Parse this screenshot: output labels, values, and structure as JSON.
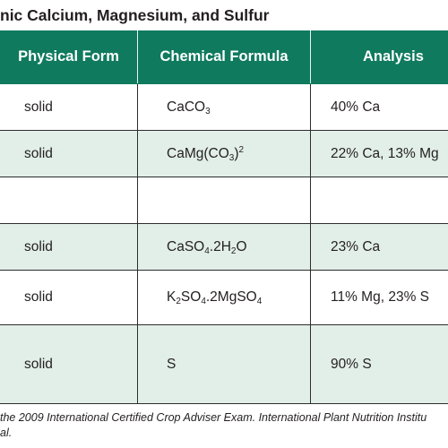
{
  "title": "nic Calcium, Magnesium, and Sulfur",
  "table": {
    "headers": [
      "Physical Form",
      "Chemical Formula",
      "Analysis"
    ],
    "rows": [
      {
        "form": "solid",
        "formula": [
          {
            "t": "CaCO"
          },
          {
            "sub": "3"
          }
        ],
        "analysis": "40% Ca"
      },
      {
        "form": "solid",
        "formula": [
          {
            "t": "CaMg(CO"
          },
          {
            "sub": "3"
          },
          {
            "t": ")"
          },
          {
            "sup": "2"
          }
        ],
        "analysis": "22% Ca, 13% Mg"
      },
      {
        "form": "",
        "formula": [],
        "analysis": ""
      },
      {
        "form": "solid",
        "formula": [
          {
            "t": "CaSO"
          },
          {
            "sub": "4"
          },
          {
            "t": ".2H"
          },
          {
            "sub": "2"
          },
          {
            "t": "O"
          }
        ],
        "analysis": "23% Ca"
      },
      {
        "form": "solid",
        "formula": [
          {
            "t": "K"
          },
          {
            "sub": "2"
          },
          {
            "t": "SO"
          },
          {
            "sub": "4"
          },
          {
            "t": ".2MgSO"
          },
          {
            "sub": "4"
          }
        ],
        "analysis": "11% Mg, 23% S"
      },
      {
        "form": "solid",
        "formula": [
          {
            "t": "S"
          }
        ],
        "analysis": "90% S"
      }
    ]
  },
  "footnote": {
    "line1": "the 2009 International Certified Crop Adviser Exam. International Plant Nutrition Institu",
    "line2": "al."
  }
}
